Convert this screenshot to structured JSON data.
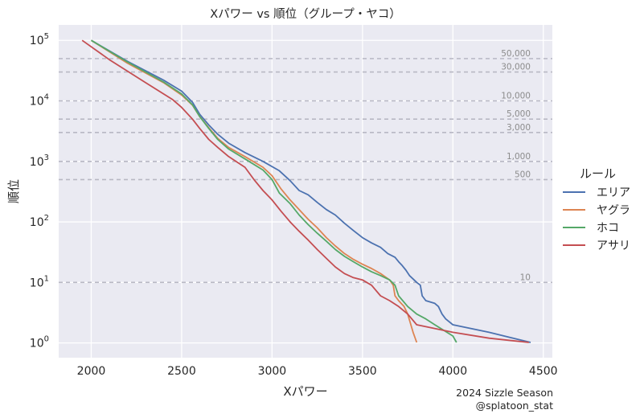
{
  "chart_data": {
    "type": "line",
    "title": "Xパワー vs 順位（グループ・ヤコ）",
    "xlabel": "Xパワー",
    "ylabel": "順位",
    "xlim": [
      1820,
      4550
    ],
    "ylim": [
      0.57,
      180000
    ],
    "yscale": "log",
    "grid": true,
    "xticks": [
      2000,
      2500,
      3000,
      3500,
      4000,
      4500
    ],
    "yticks": [
      {
        "value": 1,
        "base": "10",
        "exp": "0"
      },
      {
        "value": 10,
        "base": "10",
        "exp": "1"
      },
      {
        "value": 100,
        "base": "10",
        "exp": "2"
      },
      {
        "value": 1000,
        "base": "10",
        "exp": "3"
      },
      {
        "value": 10000,
        "base": "10",
        "exp": "4"
      },
      {
        "value": 100000,
        "base": "10",
        "exp": "5"
      }
    ],
    "reference_lines": [
      {
        "value": 50000,
        "label": "50,000"
      },
      {
        "value": 30000,
        "label": "30,000"
      },
      {
        "value": 10000,
        "label": "10,000"
      },
      {
        "value": 5000,
        "label": "5,000"
      },
      {
        "value": 3000,
        "label": "3,000"
      },
      {
        "value": 1000,
        "label": "1,000"
      },
      {
        "value": 500,
        "label": "500"
      },
      {
        "value": 10,
        "label": "10"
      }
    ],
    "legend": {
      "title": "ルール",
      "position": "right"
    },
    "series": [
      {
        "name": "エリア",
        "color": "#4c72b0",
        "points": [
          [
            2000,
            100000
          ],
          [
            2200,
            45000
          ],
          [
            2400,
            22000
          ],
          [
            2500,
            14500
          ],
          [
            2560,
            9500
          ],
          [
            2600,
            6000
          ],
          [
            2650,
            4000
          ],
          [
            2700,
            2800
          ],
          [
            2760,
            2000
          ],
          [
            2850,
            1400
          ],
          [
            2950,
            1000
          ],
          [
            3040,
            700
          ],
          [
            3100,
            480
          ],
          [
            3150,
            330
          ],
          [
            3200,
            280
          ],
          [
            3250,
            210
          ],
          [
            3300,
            160
          ],
          [
            3350,
            130
          ],
          [
            3400,
            95
          ],
          [
            3450,
            72
          ],
          [
            3500,
            55
          ],
          [
            3550,
            45
          ],
          [
            3600,
            38
          ],
          [
            3640,
            30
          ],
          [
            3680,
            26
          ],
          [
            3700,
            22
          ],
          [
            3720,
            19
          ],
          [
            3740,
            16
          ],
          [
            3760,
            13
          ],
          [
            3800,
            10
          ],
          [
            3820,
            9
          ],
          [
            3830,
            6
          ],
          [
            3850,
            5
          ],
          [
            3900,
            4.5
          ],
          [
            3920,
            4
          ],
          [
            3940,
            3
          ],
          [
            3960,
            2.5
          ],
          [
            4000,
            2
          ],
          [
            4200,
            1.5
          ],
          [
            4430,
            1.02
          ]
        ]
      },
      {
        "name": "ヤグラ",
        "color": "#dd8452",
        "points": [
          [
            2000,
            100000
          ],
          [
            2200,
            42000
          ],
          [
            2400,
            20000
          ],
          [
            2500,
            12500
          ],
          [
            2560,
            8500
          ],
          [
            2600,
            5500
          ],
          [
            2650,
            3600
          ],
          [
            2700,
            2400
          ],
          [
            2760,
            1700
          ],
          [
            2850,
            1200
          ],
          [
            2950,
            800
          ],
          [
            3000,
            580
          ],
          [
            3050,
            350
          ],
          [
            3100,
            230
          ],
          [
            3150,
            160
          ],
          [
            3200,
            110
          ],
          [
            3250,
            80
          ],
          [
            3300,
            55
          ],
          [
            3350,
            40
          ],
          [
            3400,
            30
          ],
          [
            3450,
            24
          ],
          [
            3500,
            20
          ],
          [
            3550,
            17
          ],
          [
            3600,
            14
          ],
          [
            3650,
            11
          ],
          [
            3670,
            9
          ],
          [
            3680,
            6
          ],
          [
            3700,
            5
          ],
          [
            3730,
            4
          ],
          [
            3750,
            3
          ],
          [
            3780,
            1.5
          ],
          [
            3800,
            1.02
          ]
        ]
      },
      {
        "name": "ホコ",
        "color": "#55a868",
        "points": [
          [
            2000,
            100000
          ],
          [
            2200,
            44000
          ],
          [
            2400,
            20500
          ],
          [
            2500,
            13000
          ],
          [
            2560,
            8600
          ],
          [
            2600,
            5500
          ],
          [
            2650,
            3500
          ],
          [
            2700,
            2300
          ],
          [
            2760,
            1600
          ],
          [
            2850,
            1100
          ],
          [
            2950,
            720
          ],
          [
            3000,
            500
          ],
          [
            3040,
            300
          ],
          [
            3100,
            200
          ],
          [
            3150,
            130
          ],
          [
            3200,
            90
          ],
          [
            3250,
            65
          ],
          [
            3300,
            48
          ],
          [
            3350,
            35
          ],
          [
            3400,
            27
          ],
          [
            3450,
            22
          ],
          [
            3500,
            18
          ],
          [
            3550,
            15
          ],
          [
            3600,
            13
          ],
          [
            3650,
            11
          ],
          [
            3680,
            9
          ],
          [
            3700,
            6
          ],
          [
            3750,
            4
          ],
          [
            3800,
            3
          ],
          [
            3850,
            2.5
          ],
          [
            3900,
            2
          ],
          [
            4000,
            1.3
          ],
          [
            4020,
            1.02
          ]
        ]
      },
      {
        "name": "アサリ",
        "color": "#c44e52",
        "points": [
          [
            1950,
            100000
          ],
          [
            2100,
            48000
          ],
          [
            2300,
            20000
          ],
          [
            2450,
            10500
          ],
          [
            2500,
            7800
          ],
          [
            2560,
            5000
          ],
          [
            2600,
            3500
          ],
          [
            2650,
            2300
          ],
          [
            2700,
            1700
          ],
          [
            2760,
            1200
          ],
          [
            2850,
            800
          ],
          [
            2900,
            500
          ],
          [
            2950,
            330
          ],
          [
            3000,
            230
          ],
          [
            3050,
            150
          ],
          [
            3100,
            100
          ],
          [
            3150,
            70
          ],
          [
            3200,
            50
          ],
          [
            3250,
            35
          ],
          [
            3300,
            25
          ],
          [
            3350,
            18
          ],
          [
            3400,
            14
          ],
          [
            3450,
            12
          ],
          [
            3500,
            11
          ],
          [
            3550,
            9
          ],
          [
            3600,
            6
          ],
          [
            3650,
            5
          ],
          [
            3700,
            4
          ],
          [
            3750,
            3
          ],
          [
            3800,
            2
          ],
          [
            4000,
            1.5
          ],
          [
            4200,
            1.2
          ],
          [
            4420,
            1.02
          ]
        ]
      }
    ],
    "annotation": [
      "2024 Sizzle Season",
      "@splatoon_stat"
    ]
  }
}
